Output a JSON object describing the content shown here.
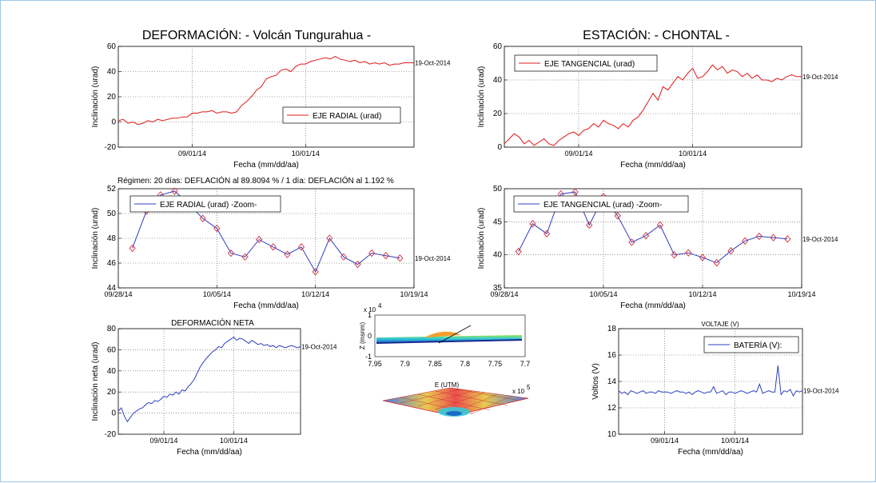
{
  "titles": {
    "main_left": "DEFORMACIÓN: - Volcán Tungurahua -",
    "main_right": "ESTACIÓN: - CHONTAL -",
    "regimen": "Régimen: 20 días: DEFLACIÓN al 89.8094 % / 1 día: DEFLACIÓN al 1.192 %",
    "neta": "DEFORMACIÓN NETA",
    "voltaje": "VOLTAJE (V)"
  },
  "chart_data": [
    {
      "id": "radial",
      "type": "line",
      "xlabel": "Fecha (mm/dd/aa)",
      "ylabel": "Inclinación (urad)",
      "ylim": [
        -20,
        60
      ],
      "yticks": [
        "-20",
        "0",
        "20",
        "40",
        "60"
      ],
      "xlim": [
        0,
        60
      ],
      "xticks": [
        {
          "x": 15,
          "label": "09/01/14"
        },
        {
          "x": 38,
          "label": "10/01/14"
        }
      ],
      "grid": true,
      "legend": "EJE RADIAL (urad)",
      "legend_position": "lower-right",
      "end_label": "19-Oct-2014",
      "color": "#e01818",
      "x": [
        0,
        1,
        2,
        3,
        4,
        5,
        6,
        7,
        8,
        9,
        10,
        11,
        12,
        13,
        14,
        15,
        16,
        17,
        18,
        19,
        20,
        21,
        22,
        23,
        24,
        25,
        26,
        27,
        28,
        29,
        30,
        31,
        32,
        33,
        34,
        35,
        36,
        37,
        38,
        39,
        40,
        41,
        42,
        43,
        44,
        45,
        46,
        47,
        48,
        49,
        50,
        51,
        52,
        53,
        54,
        55,
        56,
        57,
        58,
        59,
        60
      ],
      "y": [
        1,
        2,
        -1,
        0,
        -2,
        -1,
        1,
        0,
        2,
        1,
        2,
        3,
        3,
        4,
        4,
        7,
        7,
        8,
        8,
        9,
        7,
        8,
        8,
        7,
        8,
        13,
        16,
        20,
        25,
        28,
        34,
        36,
        37,
        41,
        42,
        40,
        44,
        46,
        46,
        48,
        49,
        50,
        51,
        50,
        52,
        50,
        49,
        48,
        49,
        47,
        48,
        46,
        47,
        46,
        47,
        45,
        46,
        46,
        47,
        47,
        47
      ]
    },
    {
      "id": "tangencial",
      "type": "line",
      "xlabel": "Fecha (mm/dd/aa)",
      "ylabel": "Inclinación (urad)",
      "ylim": [
        0,
        60
      ],
      "yticks": [
        "0",
        "20",
        "40",
        "60"
      ],
      "xlim": [
        0,
        60
      ],
      "xticks": [
        {
          "x": 15,
          "label": "09/01/14"
        },
        {
          "x": 38,
          "label": "10/01/14"
        }
      ],
      "grid": true,
      "legend": "EJE TANGENCIAL (urad)",
      "legend_position": "top-left",
      "end_label": "19-Oct-2014",
      "color": "#e01818",
      "x": [
        0,
        1,
        2,
        3,
        4,
        5,
        6,
        7,
        8,
        9,
        10,
        11,
        12,
        13,
        14,
        15,
        16,
        17,
        18,
        19,
        20,
        21,
        22,
        23,
        24,
        25,
        26,
        27,
        28,
        29,
        30,
        31,
        32,
        33,
        34,
        35,
        36,
        37,
        38,
        39,
        40,
        41,
        42,
        43,
        44,
        45,
        46,
        47,
        48,
        49,
        50,
        51,
        52,
        53,
        54,
        55,
        56,
        57,
        58,
        59,
        60
      ],
      "y": [
        2,
        5,
        8,
        6,
        2,
        4,
        1,
        3,
        5,
        2,
        1,
        4,
        6,
        8,
        9,
        7,
        10,
        11,
        14,
        12,
        16,
        14,
        13,
        11,
        14,
        12,
        16,
        18,
        22,
        27,
        32,
        28,
        36,
        34,
        38,
        42,
        40,
        44,
        47,
        41,
        42,
        45,
        49,
        46,
        48,
        44,
        46,
        45,
        42,
        44,
        41,
        43,
        40,
        40,
        39,
        41,
        40,
        42,
        43,
        42,
        42
      ]
    },
    {
      "id": "radial-zoom",
      "type": "line",
      "xlabel": "Fecha (mm/dd/aa)",
      "ylabel": "Inclinación (urad)",
      "ylim": [
        44,
        52
      ],
      "yticks": [
        "44",
        "46",
        "48",
        "50",
        "52"
      ],
      "xlim": [
        0,
        21
      ],
      "xticks": [
        {
          "x": 0,
          "label": "09/28/14"
        },
        {
          "x": 7,
          "label": "10/05/14"
        },
        {
          "x": 14,
          "label": "10/12/14"
        },
        {
          "x": 21,
          "label": "10/19/14"
        }
      ],
      "grid": true,
      "legend": "EJE RADIAL (urad) -Zoom-",
      "legend_position": "top-left",
      "end_label": "19-Oct-2014",
      "color": "#2f3fbf",
      "marker_color": "#d0303a",
      "x": [
        1,
        2,
        3,
        4,
        5,
        6,
        7,
        8,
        9,
        10,
        11,
        12,
        13,
        14,
        15,
        16,
        17,
        18,
        19,
        20
      ],
      "y": [
        47.2,
        50.2,
        51.5,
        51.8,
        50.8,
        49.6,
        48.8,
        46.8,
        46.5,
        47.9,
        47.3,
        46.7,
        47.3,
        45.3,
        48,
        46.5,
        45.9,
        46.8,
        46.6,
        46.4
      ]
    },
    {
      "id": "tangencial-zoom",
      "type": "line",
      "xlabel": "Fecha (mm/dd/aa)",
      "ylabel": "Inclinación (urad)",
      "ylim": [
        35,
        50
      ],
      "yticks": [
        "35",
        "40",
        "45",
        "50"
      ],
      "xlim": [
        0,
        21
      ],
      "xticks": [
        {
          "x": 0,
          "label": "09/28/14"
        },
        {
          "x": 7,
          "label": "10/05/14"
        },
        {
          "x": 14,
          "label": "10/12/14"
        },
        {
          "x": 21,
          "label": "10/19/14"
        }
      ],
      "grid": true,
      "legend": "EJE TANGENCIAL (urad) -Zoom-",
      "legend_position": "top-left",
      "end_label": "19-Oct-2014",
      "color": "#2f3fbf",
      "marker_color": "#d0303a",
      "x": [
        1,
        2,
        3,
        4,
        5,
        6,
        7,
        8,
        9,
        10,
        11,
        12,
        13,
        14,
        15,
        16,
        17,
        18,
        19,
        20
      ],
      "y": [
        40.5,
        44.7,
        43.2,
        49.2,
        49.5,
        44.5,
        48.8,
        45.9,
        41.9,
        42.9,
        44.5,
        40,
        40.3,
        39.6,
        38.8,
        40.6,
        42.1,
        42.8,
        42.6,
        42.4
      ]
    },
    {
      "id": "neta",
      "type": "line",
      "xlabel": "Fecha (mm/dd/aa)",
      "ylabel": "Inclinación neta (urad)",
      "ylim": [
        -20,
        80
      ],
      "yticks": [
        "-20",
        "0",
        "20",
        "40",
        "60",
        "80"
      ],
      "xlim": [
        0,
        60
      ],
      "xticks": [
        {
          "x": 15,
          "label": "09/01/14"
        },
        {
          "x": 38,
          "label": "10/01/14"
        }
      ],
      "grid": true,
      "end_label": "19-Oct-2014",
      "color": "#2f3fbf",
      "x": [
        0,
        1,
        2,
        3,
        4,
        5,
        6,
        7,
        8,
        9,
        10,
        11,
        12,
        13,
        14,
        15,
        16,
        17,
        18,
        19,
        20,
        21,
        22,
        23,
        24,
        25,
        26,
        27,
        28,
        29,
        30,
        31,
        32,
        33,
        34,
        35,
        36,
        37,
        38,
        39,
        40,
        41,
        42,
        43,
        44,
        45,
        46,
        47,
        48,
        49,
        50,
        51,
        52,
        53,
        54,
        55,
        56,
        57,
        58,
        59,
        60
      ],
      "y": [
        2,
        5,
        -3,
        -8,
        -4,
        0,
        2,
        4,
        5,
        8,
        10,
        9,
        12,
        11,
        13,
        16,
        15,
        18,
        17,
        20,
        18,
        22,
        21,
        25,
        28,
        32,
        38,
        44,
        48,
        52,
        55,
        58,
        60,
        63,
        62,
        66,
        68,
        70,
        72,
        69,
        71,
        70,
        68,
        66,
        69,
        67,
        65,
        66,
        64,
        65,
        63,
        64,
        62,
        64,
        63,
        62,
        63,
        64,
        63,
        62,
        63
      ]
    },
    {
      "id": "voltaje",
      "type": "line",
      "xlabel": "Fecha (mm/dd/aa)",
      "ylabel": "Voltios (V)",
      "ylim": [
        10,
        18
      ],
      "yticks": [
        "10",
        "12",
        "14",
        "16",
        "18"
      ],
      "xlim": [
        0,
        60
      ],
      "xticks": [
        {
          "x": 15,
          "label": "09/01/14"
        },
        {
          "x": 38,
          "label": "10/01/14"
        }
      ],
      "grid": true,
      "legend": "BATERÍA (V):",
      "legend_position": "top-right",
      "end_label": "19-Oct-2014",
      "color": "#2f3fbf",
      "x": [
        0,
        1,
        2,
        3,
        4,
        5,
        6,
        7,
        8,
        9,
        10,
        11,
        12,
        13,
        14,
        15,
        16,
        17,
        18,
        19,
        20,
        21,
        22,
        23,
        24,
        25,
        26,
        27,
        28,
        29,
        30,
        31,
        32,
        33,
        34,
        35,
        36,
        37,
        38,
        39,
        40,
        41,
        42,
        43,
        44,
        45,
        46,
        47,
        48,
        49,
        50,
        51,
        52,
        53,
        54,
        55,
        56,
        57,
        58,
        59,
        60
      ],
      "y": [
        13.3,
        13.1,
        13.2,
        13.0,
        13.3,
        13.2,
        13.1,
        13.2,
        13.3,
        13.1,
        13.2,
        13.2,
        13.1,
        13.3,
        13.2,
        13.2,
        13.2,
        13.1,
        13.2,
        13.3,
        13.2,
        13.2,
        13.1,
        13.2,
        13.0,
        13.2,
        13.3,
        13.2,
        13.1,
        13.2,
        13.2,
        13.6,
        13.1,
        13.2,
        13.3,
        13.0,
        13.2,
        13.2,
        13.1,
        13.2,
        13.3,
        13.2,
        13.1,
        13.2,
        13.3,
        13.2,
        13.8,
        13.1,
        13.2,
        13.3,
        13.2,
        13.2,
        15.2,
        13.0,
        13.3,
        13.2,
        13.4,
        12.9,
        13.3,
        13.2,
        13.3
      ]
    },
    {
      "id": "model3d",
      "type": "scatter",
      "xlabel": "E (UTM)",
      "ylabel": "Z (msnm)",
      "ylim": [
        -1,
        1
      ],
      "yticks": [
        "-1",
        "0",
        "1"
      ],
      "xlim": [
        7.7,
        7.95
      ],
      "xticks": [
        {
          "x": 7.95,
          "label": "7.95"
        },
        {
          "x": 7.9,
          "label": "7.9"
        },
        {
          "x": 7.85,
          "label": "7.85"
        },
        {
          "x": 7.8,
          "label": "7.8"
        },
        {
          "x": 7.75,
          "label": "7.75"
        },
        {
          "x": 7.7,
          "label": "7.7"
        }
      ],
      "y_exponent": "x 10",
      "exp_power": "4",
      "x_exponent": "x 10",
      "x_exp_power": "5"
    }
  ]
}
